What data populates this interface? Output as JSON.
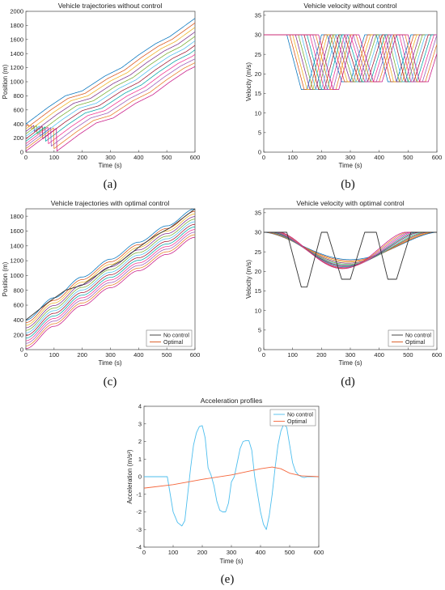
{
  "panel_labels": [
    "(a)",
    "(b)",
    "(c)",
    "(d)",
    "(e)"
  ],
  "series_palette": [
    "#0072BD",
    "#D95319",
    "#EDB120",
    "#7E2F8E",
    "#77AC30",
    "#4DBEEE",
    "#A2142F",
    "#00A6A6",
    "#F0308F",
    "#9B59B6",
    "#E67E22",
    "#C71585"
  ],
  "chart_data": [
    {
      "id": "a",
      "type": "line",
      "title": "Vehicle trajectories without control",
      "xlabel": "Time (s)",
      "ylabel": "Position (m)",
      "xlim": [
        0,
        600
      ],
      "ylim": [
        0,
        2000
      ],
      "xticks": [
        0,
        100,
        200,
        300,
        400,
        500,
        600
      ],
      "yticks": [
        0,
        200,
        400,
        600,
        800,
        1000,
        1200,
        1400,
        1600,
        1800,
        2000
      ],
      "legend": null,
      "family": {
        "count": 12,
        "offsets": [
          400,
          365,
          330,
          295,
          260,
          225,
          190,
          155,
          120,
          85,
          50,
          15
        ],
        "delays": [
          0,
          10,
          20,
          30,
          40,
          50,
          60,
          70,
          80,
          90,
          100,
          110
        ],
        "lead_position": {
          "t": [
            0,
            80,
            140,
            200,
            280,
            340,
            400,
            460,
            510,
            600
          ],
          "value": [
            400,
            640,
            800,
            870,
            1080,
            1200,
            1380,
            1540,
            1640,
            1900
          ]
        }
      }
    },
    {
      "id": "b",
      "type": "line",
      "title": "Vehicle velocity without control",
      "xlabel": "Time (s)",
      "ylabel": "Velocity (m/s)",
      "xlim": [
        0,
        600
      ],
      "ylim": [
        0,
        36
      ],
      "xticks": [
        0,
        100,
        200,
        300,
        400,
        500,
        600
      ],
      "yticks": [
        0,
        5,
        10,
        15,
        20,
        25,
        30,
        35
      ],
      "legend": null,
      "family": {
        "count": 12,
        "delays": [
          0,
          10,
          20,
          30,
          40,
          50,
          60,
          70,
          80,
          90,
          100,
          110
        ],
        "lead_velocity": {
          "t": [
            0,
            80,
            130,
            150,
            200,
            220,
            270,
            300,
            350,
            390,
            430,
            460,
            510,
            600
          ],
          "value": [
            30,
            30,
            16,
            16,
            30,
            30,
            18,
            18,
            30,
            30,
            18,
            18,
            30,
            30
          ]
        }
      }
    },
    {
      "id": "c",
      "type": "line",
      "title": "Vehicle trajectories with optimal control",
      "xlabel": "Time (s)",
      "ylabel": "Position (m)",
      "xlim": [
        0,
        600
      ],
      "ylim": [
        0,
        1900
      ],
      "xticks": [
        0,
        100,
        200,
        300,
        400,
        500,
        600
      ],
      "yticks": [
        0,
        200,
        400,
        600,
        800,
        1000,
        1200,
        1400,
        1600,
        1800
      ],
      "legend": [
        "No control",
        "Optimal"
      ],
      "legend_position": "bottom-right",
      "series": [
        {
          "name": "No control",
          "color": "#333333",
          "x": [
            0,
            80,
            140,
            200,
            280,
            340,
            400,
            460,
            510,
            600
          ],
          "y": [
            400,
            640,
            800,
            870,
            1080,
            1200,
            1380,
            1540,
            1640,
            1900
          ]
        }
      ],
      "family": {
        "count": 12,
        "offsets": [
          400,
          365,
          330,
          295,
          260,
          225,
          190,
          155,
          120,
          85,
          50,
          15
        ],
        "lead_smooth": {
          "t": [
            0,
            100,
            200,
            300,
            400,
            500,
            600
          ],
          "value": [
            400,
            700,
            980,
            1220,
            1450,
            1670,
            1900
          ]
        }
      }
    },
    {
      "id": "d",
      "type": "line",
      "title": "Vehicle velocity with optimal control",
      "xlabel": "Time (s)",
      "ylabel": "Velocity (m/s)",
      "xlim": [
        0,
        600
      ],
      "ylim": [
        0,
        36
      ],
      "xticks": [
        0,
        100,
        200,
        300,
        400,
        500,
        600
      ],
      "yticks": [
        0,
        5,
        10,
        15,
        20,
        25,
        30,
        35
      ],
      "legend": [
        "No control",
        "Optimal"
      ],
      "legend_position": "bottom-right",
      "series": [
        {
          "name": "No control",
          "color": "#333333",
          "x": [
            0,
            80,
            130,
            150,
            200,
            220,
            270,
            300,
            350,
            390,
            430,
            460,
            510,
            600
          ],
          "y": [
            30,
            30,
            16,
            16,
            30,
            30,
            18,
            18,
            30,
            30,
            18,
            18,
            30,
            30
          ]
        }
      ],
      "family": {
        "count": 12,
        "starts": [
          0,
          5,
          10,
          15,
          20,
          25,
          30,
          35,
          40,
          45,
          50,
          55
        ],
        "ends": [
          600,
          590,
          580,
          570,
          560,
          550,
          540,
          530,
          520,
          510,
          500,
          490
        ],
        "mins": [
          23,
          22.7,
          22.4,
          22.1,
          21.8,
          21.6,
          21.4,
          21.2,
          21.0,
          20.9,
          20.8,
          20.7
        ],
        "high": 30
      }
    },
    {
      "id": "e",
      "type": "line",
      "title": "Acceleration profiles",
      "xlabel": "Time (s)",
      "ylabel": "Acceleration (m/s²)",
      "xlim": [
        0,
        600
      ],
      "ylim": [
        -4,
        4
      ],
      "xticks": [
        0,
        100,
        200,
        300,
        400,
        500,
        600
      ],
      "yticks": [
        -4,
        -3,
        -2,
        -1,
        0,
        1,
        2,
        3,
        4
      ],
      "legend": [
        "No control",
        "Optimal"
      ],
      "legend_position": "top-right",
      "series": [
        {
          "name": "No control",
          "color": "#4DBEEE",
          "x": [
            0,
            80,
            90,
            100,
            115,
            130,
            140,
            150,
            160,
            170,
            180,
            190,
            200,
            210,
            220,
            230,
            240,
            250,
            260,
            270,
            280,
            290,
            300,
            310,
            320,
            330,
            340,
            350,
            360,
            370,
            380,
            390,
            400,
            410,
            420,
            430,
            440,
            450,
            460,
            470,
            480,
            490,
            500,
            510,
            520,
            530,
            540,
            550,
            560,
            600
          ],
          "y": [
            0,
            0,
            -1.0,
            -2.0,
            -2.6,
            -2.8,
            -2.5,
            -1.0,
            0.5,
            1.8,
            2.5,
            2.85,
            2.9,
            2.2,
            0.5,
            0.1,
            -0.5,
            -1.4,
            -1.9,
            -2.0,
            -2.0,
            -1.5,
            -0.3,
            0.0,
            0.8,
            1.6,
            2.0,
            2.05,
            2.05,
            1.5,
            0.0,
            -1.0,
            -2.0,
            -2.7,
            -3.0,
            -2.2,
            -1.0,
            0.5,
            1.8,
            2.6,
            3.0,
            2.8,
            1.8,
            0.8,
            0.3,
            0.1,
            0.0,
            -0.05,
            0.0,
            0.0
          ]
        },
        {
          "name": "Optimal",
          "color": "#F5653A",
          "x": [
            0,
            100,
            200,
            300,
            400,
            440,
            470,
            500,
            540,
            600
          ],
          "y": [
            -0.65,
            -0.45,
            -0.15,
            0.1,
            0.45,
            0.55,
            0.45,
            0.2,
            0.05,
            0.0
          ]
        }
      ]
    }
  ]
}
